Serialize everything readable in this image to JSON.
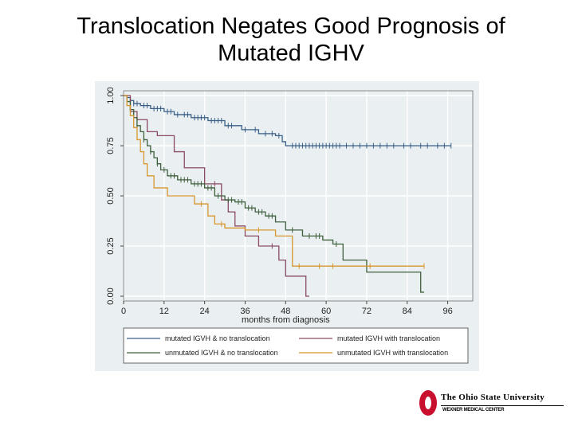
{
  "slide": {
    "title_line1": "Translocation Negates Good Prognosis of",
    "title_line2": "Mutated IGHV"
  },
  "logo": {
    "university": "The Ohio State University",
    "center": "WEXNER MEDICAL CENTER",
    "brand_color": "#c8102e"
  },
  "chart_data": {
    "type": "line",
    "subtype": "kaplan-meier step survival curves with censor ticks",
    "xlabel": "months from diagnosis",
    "ylabel": "",
    "xlim": [
      0,
      102
    ],
    "ylim": [
      0,
      1
    ],
    "xticks": [
      0,
      12,
      24,
      36,
      48,
      60,
      72,
      84,
      96
    ],
    "yticks": [
      0.0,
      0.25,
      0.5,
      0.75,
      1.0
    ],
    "ytick_labels": [
      "0.00",
      "0.25",
      "0.50",
      "0.75",
      "1.00"
    ],
    "grid": true,
    "legend_position": "bottom",
    "series": [
      {
        "name": "mutated IGVH & no translocation",
        "color": "#3a5f86",
        "steps": [
          [
            0,
            1.0
          ],
          [
            1,
            0.99
          ],
          [
            2,
            0.975
          ],
          [
            3,
            0.96
          ],
          [
            5,
            0.95
          ],
          [
            8,
            0.935
          ],
          [
            12,
            0.92
          ],
          [
            15,
            0.905
          ],
          [
            20,
            0.89
          ],
          [
            25,
            0.875
          ],
          [
            30,
            0.85
          ],
          [
            35,
            0.83
          ],
          [
            40,
            0.81
          ],
          [
            45,
            0.8
          ],
          [
            47,
            0.77
          ],
          [
            48,
            0.75
          ],
          [
            97,
            0.75
          ]
        ],
        "censors": [
          2,
          3,
          4,
          6,
          7,
          9,
          10,
          11,
          13,
          14,
          16,
          18,
          19,
          21,
          22,
          23,
          24,
          26,
          27,
          28,
          29,
          31,
          32,
          36,
          39,
          42,
          44,
          46,
          50,
          51,
          52,
          53,
          54,
          55,
          56,
          57,
          58,
          59,
          60,
          61,
          62,
          63,
          64,
          66,
          68,
          70,
          72,
          74,
          76,
          78,
          80,
          83,
          85,
          88,
          90,
          93,
          95,
          97
        ]
      },
      {
        "name": "mutated IGVH with translocation",
        "color": "#8a4a63",
        "steps": [
          [
            0,
            1.0
          ],
          [
            2,
            0.92
          ],
          [
            4,
            0.88
          ],
          [
            7,
            0.82
          ],
          [
            10,
            0.8
          ],
          [
            14,
            0.8
          ],
          [
            15,
            0.72
          ],
          [
            18,
            0.64
          ],
          [
            24,
            0.56
          ],
          [
            29,
            0.48
          ],
          [
            31,
            0.42
          ],
          [
            33,
            0.35
          ],
          [
            36,
            0.3
          ],
          [
            40,
            0.25
          ],
          [
            46,
            0.18
          ],
          [
            48,
            0.1
          ],
          [
            54,
            0.1
          ],
          [
            54,
            0.0
          ],
          [
            55,
            0.0
          ]
        ],
        "censors": [
          27,
          44
        ]
      },
      {
        "name": "unmutated IGVH & no translocation",
        "color": "#3f5f3d",
        "steps": [
          [
            0,
            1.0
          ],
          [
            1,
            0.97
          ],
          [
            2,
            0.93
          ],
          [
            3,
            0.89
          ],
          [
            4,
            0.85
          ],
          [
            5,
            0.82
          ],
          [
            6,
            0.78
          ],
          [
            7,
            0.75
          ],
          [
            8,
            0.72
          ],
          [
            9,
            0.69
          ],
          [
            10,
            0.66
          ],
          [
            11,
            0.63
          ],
          [
            13,
            0.6
          ],
          [
            16,
            0.58
          ],
          [
            20,
            0.56
          ],
          [
            24,
            0.54
          ],
          [
            27,
            0.5
          ],
          [
            30,
            0.48
          ],
          [
            33,
            0.47
          ],
          [
            36,
            0.44
          ],
          [
            39,
            0.42
          ],
          [
            42,
            0.4
          ],
          [
            45,
            0.37
          ],
          [
            48,
            0.33
          ],
          [
            53,
            0.3
          ],
          [
            59,
            0.28
          ],
          [
            62,
            0.26
          ],
          [
            65,
            0.18
          ],
          [
            72,
            0.12
          ],
          [
            88,
            0.12
          ],
          [
            88,
            0.02
          ],
          [
            89,
            0.02
          ]
        ],
        "censors": [
          4,
          6,
          8,
          10,
          12,
          14,
          15,
          17,
          18,
          19,
          21,
          22,
          23,
          25,
          26,
          28,
          31,
          32,
          34,
          35,
          37,
          38,
          40,
          41,
          43,
          44,
          50,
          55,
          57,
          58,
          63
        ]
      },
      {
        "name": "unmutated IGVH with translocation",
        "color": "#d8962e",
        "steps": [
          [
            0,
            1.0
          ],
          [
            1,
            0.95
          ],
          [
            2,
            0.9
          ],
          [
            3,
            0.84
          ],
          [
            4,
            0.78
          ],
          [
            5,
            0.72
          ],
          [
            6,
            0.66
          ],
          [
            7,
            0.6
          ],
          [
            9,
            0.54
          ],
          [
            12,
            0.54
          ],
          [
            13,
            0.5
          ],
          [
            20,
            0.5
          ],
          [
            21,
            0.46
          ],
          [
            25,
            0.4
          ],
          [
            27,
            0.36
          ],
          [
            30,
            0.34
          ],
          [
            36,
            0.33
          ],
          [
            45,
            0.3
          ],
          [
            50,
            0.2
          ],
          [
            50,
            0.15
          ],
          [
            89,
            0.15
          ]
        ],
        "censors": [
          23,
          29,
          40,
          52,
          58,
          62,
          73,
          89
        ]
      }
    ]
  }
}
